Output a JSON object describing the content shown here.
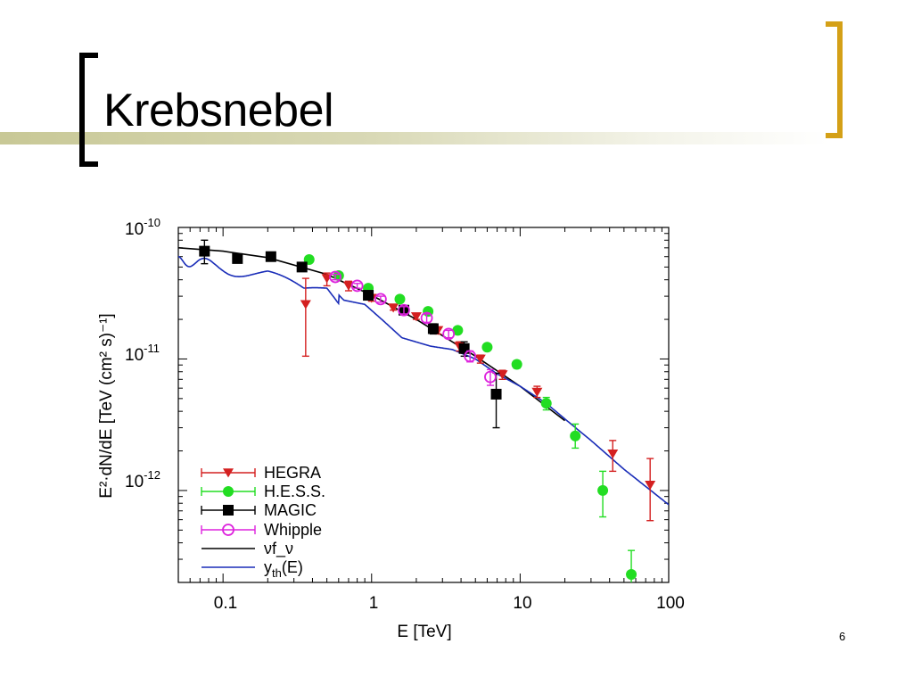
{
  "slide": {
    "title": "Krebsnebel",
    "page_number": "6",
    "colors": {
      "bracket_left": "#000000",
      "bracket_right": "#d4a017",
      "title_bar": "#c8c896"
    }
  },
  "chart_data": {
    "type": "scatter",
    "title": "",
    "xlabel": "E [TeV]",
    "ylabel": "E²·dN/dE [TeV (cm² s)⁻¹]",
    "xscale": "log",
    "yscale": "log",
    "xlim": [
      0.05,
      100
    ],
    "ylim": [
      2e-13,
      1e-10
    ],
    "x_ticks": [
      {
        "value": 0.1,
        "label": "0.1"
      },
      {
        "value": 1,
        "label": "1"
      },
      {
        "value": 10,
        "label": "10"
      },
      {
        "value": 100,
        "label": "100"
      }
    ],
    "y_ticks": [
      {
        "value": 1e-10,
        "label": "10",
        "exp": "-10"
      },
      {
        "value": 1e-11,
        "label": "10",
        "exp": "-11"
      },
      {
        "value": 1e-12,
        "label": "10",
        "exp": "-12"
      }
    ],
    "legend_position": "bottom-left",
    "series": [
      {
        "name": "HEGRA",
        "marker": "triangle-down",
        "color": "#d42020",
        "points": [
          {
            "x": 0.36,
            "y": 2.6e-11,
            "lo": 1.05e-11,
            "hi": 4.1e-11
          },
          {
            "x": 0.5,
            "y": 4.1e-11,
            "lo": 3.6e-11,
            "hi": 4.5e-11
          },
          {
            "x": 0.7,
            "y": 3.6e-11,
            "lo": 3.3e-11,
            "hi": 3.9e-11
          },
          {
            "x": 1.0,
            "y": 2.9e-11,
            "lo": 2.75e-11,
            "hi": 3.05e-11
          },
          {
            "x": 1.4,
            "y": 2.45e-11,
            "lo": 2.35e-11,
            "hi": 2.55e-11
          },
          {
            "x": 2.0,
            "y": 2.1e-11,
            "lo": 2e-11,
            "hi": 2.2e-11
          },
          {
            "x": 2.8,
            "y": 1.65e-11,
            "lo": 1.55e-11,
            "hi": 1.75e-11
          },
          {
            "x": 3.9,
            "y": 1.25e-11,
            "lo": 1.15e-11,
            "hi": 1.35e-11
          },
          {
            "x": 5.4,
            "y": 1e-11,
            "lo": 9.3e-12,
            "hi": 1.07e-11
          },
          {
            "x": 7.6,
            "y": 7.6e-12,
            "lo": 7e-12,
            "hi": 8.2e-12
          },
          {
            "x": 13,
            "y": 5.6e-12,
            "lo": 5.1e-12,
            "hi": 6.2e-12
          },
          {
            "x": 42,
            "y": 1.9e-12,
            "lo": 1.4e-12,
            "hi": 2.4e-12
          },
          {
            "x": 75,
            "y": 1.1e-12,
            "lo": 5.9e-13,
            "hi": 1.75e-12
          }
        ]
      },
      {
        "name": "H.E.S.S.",
        "marker": "circle",
        "color": "#22dd22",
        "points": [
          {
            "x": 0.38,
            "y": 5.7e-11,
            "lo": 5.5e-11,
            "hi": 5.9e-11
          },
          {
            "x": 0.6,
            "y": 4.3e-11,
            "lo": 4.15e-11,
            "hi": 4.45e-11
          },
          {
            "x": 0.95,
            "y": 3.45e-11,
            "lo": 3.35e-11,
            "hi": 3.55e-11
          },
          {
            "x": 1.55,
            "y": 2.85e-11,
            "lo": 2.75e-11,
            "hi": 2.95e-11
          },
          {
            "x": 2.4,
            "y": 2.3e-11,
            "lo": 2.2e-11,
            "hi": 2.4e-11
          },
          {
            "x": 3.8,
            "y": 1.65e-11,
            "lo": 1.57e-11,
            "hi": 1.73e-11
          },
          {
            "x": 6.0,
            "y": 1.23e-11,
            "lo": 1.16e-11,
            "hi": 1.3e-11
          },
          {
            "x": 9.5,
            "y": 9.1e-12,
            "lo": 8.5e-12,
            "hi": 9.7e-12
          },
          {
            "x": 15,
            "y": 4.6e-12,
            "lo": 4.1e-12,
            "hi": 5.1e-12
          },
          {
            "x": 23.5,
            "y": 2.6e-12,
            "lo": 2.1e-12,
            "hi": 3.2e-12
          },
          {
            "x": 36,
            "y": 1e-12,
            "lo": 6.3e-13,
            "hi": 1.4e-12
          },
          {
            "x": 56,
            "y": 2.3e-13,
            "lo": 1e-13,
            "hi": 3.5e-13
          }
        ]
      },
      {
        "name": "MAGIC",
        "marker": "square",
        "color": "#000000",
        "points": [
          {
            "x": 0.075,
            "y": 6.6e-11,
            "lo": 5.3e-11,
            "hi": 8e-11
          },
          {
            "x": 0.125,
            "y": 5.8e-11,
            "lo": 5.4e-11,
            "hi": 6.2e-11
          },
          {
            "x": 0.21,
            "y": 6e-11,
            "lo": 5.8e-11,
            "hi": 6.2e-11
          },
          {
            "x": 0.34,
            "y": 5e-11,
            "lo": 4.8e-11,
            "hi": 5.2e-11
          },
          {
            "x": 0.95,
            "y": 3.05e-11,
            "lo": 2.9e-11,
            "hi": 3.2e-11
          },
          {
            "x": 1.65,
            "y": 2.35e-11,
            "lo": 2.2e-11,
            "hi": 2.5e-11
          },
          {
            "x": 2.6,
            "y": 1.7e-11,
            "lo": 1.55e-11,
            "hi": 1.85e-11
          },
          {
            "x": 4.2,
            "y": 1.2e-11,
            "lo": 1.05e-11,
            "hi": 1.35e-11
          },
          {
            "x": 6.9,
            "y": 5.4e-12,
            "lo": 3e-12,
            "hi": 7.8e-12
          }
        ]
      },
      {
        "name": "Whipple",
        "marker": "open-circle",
        "color": "#dd22dd",
        "points": [
          {
            "x": 0.57,
            "y": 4.2e-11,
            "lo": 4e-11,
            "hi": 4.4e-11
          },
          {
            "x": 0.8,
            "y": 3.6e-11,
            "lo": 3.45e-11,
            "hi": 3.75e-11
          },
          {
            "x": 1.15,
            "y": 2.85e-11,
            "lo": 2.7e-11,
            "hi": 3e-11
          },
          {
            "x": 1.65,
            "y": 2.35e-11,
            "lo": 2.2e-11,
            "hi": 2.5e-11
          },
          {
            "x": 2.35,
            "y": 2.05e-11,
            "lo": 1.9e-11,
            "hi": 2.2e-11
          },
          {
            "x": 3.3,
            "y": 1.55e-11,
            "lo": 1.45e-11,
            "hi": 1.65e-11
          },
          {
            "x": 4.6,
            "y": 1.05e-11,
            "lo": 9.5e-12,
            "hi": 1.15e-11
          },
          {
            "x": 6.3,
            "y": 7.3e-12,
            "lo": 6.3e-12,
            "hi": 8.3e-12
          }
        ]
      },
      {
        "name": "νf_ν",
        "style": "line",
        "color": "#000000",
        "points": [
          {
            "x": 0.05,
            "y": 7e-11
          },
          {
            "x": 0.1,
            "y": 6.6e-11
          },
          {
            "x": 0.2,
            "y": 5.9e-11
          },
          {
            "x": 0.5,
            "y": 4.4e-11
          },
          {
            "x": 1,
            "y": 3.05e-11
          },
          {
            "x": 2,
            "y": 2e-11
          },
          {
            "x": 5,
            "y": 1.05e-11
          },
          {
            "x": 10,
            "y": 6.2e-12
          },
          {
            "x": 20,
            "y": 3.4e-12
          }
        ]
      },
      {
        "name": "y_th(E)",
        "style": "line",
        "color": "#1a2db8",
        "points": [
          {
            "x": 0.05,
            "y": 6e-11
          },
          {
            "x": 0.1,
            "y": 5.7e-11
          },
          {
            "x": 0.2,
            "y": 5e-11
          },
          {
            "x": 0.35,
            "y": 3.5e-11
          },
          {
            "x": 0.5,
            "y": 3.8e-11
          },
          {
            "x": 0.65,
            "y": 2.8e-11
          },
          {
            "x": 0.9,
            "y": 2.6e-11
          },
          {
            "x": 1.2,
            "y": 1.95e-11
          },
          {
            "x": 1.6,
            "y": 1.45e-11
          },
          {
            "x": 2.5,
            "y": 1.25e-11
          },
          {
            "x": 3.5,
            "y": 1.18e-11
          },
          {
            "x": 5,
            "y": 1e-11
          },
          {
            "x": 7,
            "y": 7.7e-12
          },
          {
            "x": 10,
            "y": 6.2e-12
          },
          {
            "x": 15,
            "y": 4.6e-12
          },
          {
            "x": 20,
            "y": 3.5e-12
          },
          {
            "x": 30,
            "y": 2.4e-12
          },
          {
            "x": 50,
            "y": 1.45e-12
          },
          {
            "x": 100,
            "y": 7.8e-13
          }
        ]
      }
    ]
  }
}
